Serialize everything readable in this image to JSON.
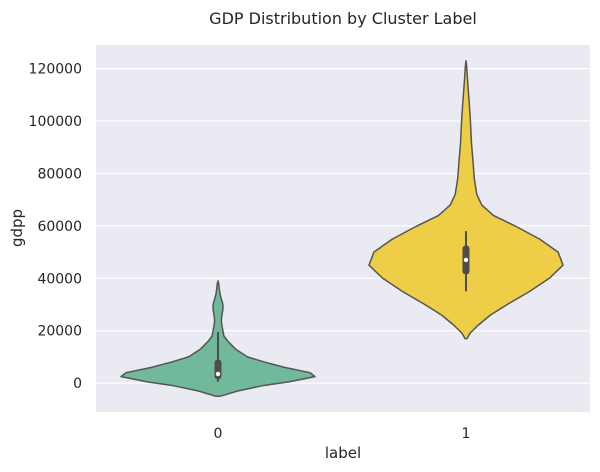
{
  "chart_data": {
    "type": "violin",
    "title": "GDP Distribution by Cluster Label",
    "xlabel": "label",
    "ylabel": "gdpp",
    "categories": [
      "0",
      "1"
    ],
    "ylim": [
      -11000,
      129000
    ],
    "yticks": [
      0,
      20000,
      40000,
      60000,
      80000,
      100000,
      120000
    ],
    "grid": true,
    "colors": {
      "background": "#EAEAF2",
      "grid": "#FFFFFF",
      "outline": "#555555",
      "inner": "#4d4d4d"
    },
    "series": [
      {
        "category": "0",
        "color": "#72B99B",
        "box": {
          "whisker_low": 500,
          "q1": 1500,
          "median": 3500,
          "q3": 9000,
          "whisker_high": 19500
        },
        "density": [
          [
            -5000,
            0.02
          ],
          [
            -3000,
            0.2
          ],
          [
            -1000,
            0.45
          ],
          [
            500,
            0.72
          ],
          [
            2500,
            0.99
          ],
          [
            4000,
            0.94
          ],
          [
            6000,
            0.68
          ],
          [
            8000,
            0.48
          ],
          [
            10000,
            0.3
          ],
          [
            13000,
            0.18
          ],
          [
            16000,
            0.1
          ],
          [
            18000,
            0.06
          ],
          [
            20000,
            0.05
          ],
          [
            22000,
            0.04
          ],
          [
            24000,
            0.035
          ],
          [
            26000,
            0.04
          ],
          [
            28000,
            0.05
          ],
          [
            30000,
            0.05
          ],
          [
            32000,
            0.035
          ],
          [
            34000,
            0.02
          ],
          [
            36000,
            0.013
          ],
          [
            38000,
            0.007
          ],
          [
            39000,
            0.0
          ]
        ]
      },
      {
        "category": "1",
        "color": "#EECE47",
        "box": {
          "whisker_low": 35000,
          "q1": 41500,
          "median": 47000,
          "q3": 52500,
          "whisker_high": 58000
        },
        "density": [
          [
            17000,
            0.01
          ],
          [
            19000,
            0.04
          ],
          [
            22000,
            0.12
          ],
          [
            26000,
            0.25
          ],
          [
            30000,
            0.42
          ],
          [
            35000,
            0.65
          ],
          [
            40000,
            0.85
          ],
          [
            45000,
            0.99
          ],
          [
            50000,
            0.94
          ],
          [
            55000,
            0.75
          ],
          [
            60000,
            0.5
          ],
          [
            64000,
            0.28
          ],
          [
            68000,
            0.16
          ],
          [
            72000,
            0.11
          ],
          [
            78000,
            0.085
          ],
          [
            85000,
            0.07
          ],
          [
            92000,
            0.055
          ],
          [
            100000,
            0.045
          ],
          [
            106000,
            0.035
          ],
          [
            112000,
            0.022
          ],
          [
            117000,
            0.013
          ],
          [
            121000,
            0.006
          ],
          [
            123000,
            0.0
          ]
        ]
      }
    ]
  }
}
